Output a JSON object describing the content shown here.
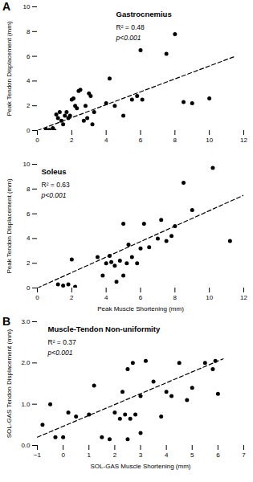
{
  "chart_data": [
    {
      "type": "scatter",
      "title": "Gastrocnemius",
      "panel_label": "A",
      "annotations": [
        "R² = 0.48",
        "p<0.001"
      ],
      "ylabel": "Peak Tendon Displacement (mm)",
      "xlim": [
        0,
        12
      ],
      "ylim": [
        0,
        10
      ],
      "xticks": [
        0,
        2,
        4,
        6,
        8,
        10,
        12
      ],
      "yticks": [
        0,
        2,
        4,
        6,
        8,
        10
      ],
      "grid": false,
      "series": [
        {
          "type": "scatter",
          "color": "black",
          "marker": "o",
          "x": [
            0.5,
            0.7,
            0.9,
            1.0,
            1.1,
            1.2,
            1.3,
            1.4,
            1.5,
            1.6,
            1.7,
            1.8,
            1.9,
            2.0,
            2.1,
            2.2,
            2.3,
            2.4,
            2.5,
            2.7,
            2.8,
            2.9,
            3.0,
            3.1,
            3.2,
            3.3,
            4.0,
            4.2,
            4.5,
            5.0,
            5.5,
            5.8,
            6.0,
            6.1,
            7.5,
            8.0,
            8.5,
            9.0,
            10.0
          ],
          "values": [
            0.1,
            0.05,
            0.2,
            0.0,
            1.3,
            1.0,
            1.5,
            0.8,
            0.5,
            1.2,
            1.5,
            1.0,
            1.2,
            2.5,
            2.6,
            2.0,
            1.8,
            3.2,
            3.3,
            0.8,
            2.0,
            1.0,
            3.0,
            2.8,
            0.5,
            1.5,
            2.2,
            4.2,
            2.0,
            1.2,
            2.5,
            2.8,
            6.5,
            2.5,
            6.2,
            7.8,
            2.3,
            2.2,
            2.6
          ]
        },
        {
          "type": "line",
          "color": "black",
          "line_style": "dashed",
          "x": [
            0,
            11.5
          ],
          "values": [
            0.0,
            6.0
          ]
        }
      ]
    },
    {
      "type": "scatter",
      "title": "Soleus",
      "annotations": [
        "R² = 0.63",
        "p<0.001"
      ],
      "xlabel": "Peak Muscle Shortening (mm)",
      "ylabel": "Peak Tendon Displacement (mm)",
      "xlim": [
        0,
        12
      ],
      "ylim": [
        0,
        10
      ],
      "xticks": [
        0,
        2,
        4,
        6,
        8,
        10,
        12
      ],
      "yticks": [
        0,
        2,
        4,
        6,
        8,
        10
      ],
      "grid": false,
      "series": [
        {
          "type": "scatter",
          "color": "black",
          "marker": "o",
          "x": [
            1.2,
            1.5,
            1.8,
            2.0,
            2.2,
            3.5,
            3.8,
            4.0,
            4.2,
            4.3,
            4.5,
            4.6,
            4.8,
            5.0,
            5.0,
            5.2,
            5.3,
            5.5,
            5.8,
            6.0,
            6.2,
            6.5,
            7.0,
            7.2,
            7.5,
            7.8,
            8.0,
            8.5,
            9.0,
            10.2,
            11.2
          ],
          "values": [
            0.3,
            0.2,
            0.3,
            2.3,
            0.1,
            2.5,
            1.0,
            2.0,
            2.6,
            2.1,
            1.8,
            0.5,
            2.2,
            5.2,
            1.0,
            2.0,
            3.5,
            2.5,
            2.0,
            3.2,
            5.2,
            3.3,
            4.0,
            5.5,
            3.8,
            4.2,
            5.0,
            8.5,
            6.3,
            9.7,
            3.8
          ]
        },
        {
          "type": "line",
          "color": "black",
          "line_style": "dashed",
          "x": [
            0,
            12
          ],
          "values": [
            0.0,
            7.5
          ]
        }
      ]
    },
    {
      "type": "scatter",
      "title": "Muscle-Tendon Non-uniformity",
      "panel_label": "B",
      "annotations": [
        "R² = 0.37",
        "p<0.001"
      ],
      "xlabel": "SOL-GAS Muscle Shortening (mm)",
      "ylabel": "SOL-GAS Tendon Displacement (mm)",
      "xlim": [
        -1,
        7
      ],
      "ylim": [
        0,
        3
      ],
      "xticks": [
        -1,
        0,
        1,
        2,
        3,
        4,
        5,
        6,
        7
      ],
      "yticks": [
        0,
        1,
        2,
        3
      ],
      "grid": false,
      "series": [
        {
          "type": "scatter",
          "color": "black",
          "marker": "o",
          "x": [
            -0.8,
            -0.5,
            -0.3,
            0.0,
            0.2,
            0.5,
            1.0,
            1.2,
            1.5,
            1.8,
            2.0,
            2.2,
            2.3,
            2.4,
            2.5,
            2.5,
            2.6,
            2.7,
            2.8,
            3.0,
            3.0,
            3.2,
            3.5,
            3.8,
            4.0,
            4.2,
            4.5,
            4.8,
            5.0,
            5.5,
            5.8,
            5.9,
            6.0
          ],
          "values": [
            0.5,
            1.0,
            0.2,
            0.2,
            0.8,
            0.7,
            0.75,
            1.45,
            0.2,
            0.15,
            0.8,
            0.65,
            1.3,
            0.75,
            1.85,
            0.15,
            0.65,
            2.0,
            0.75,
            1.2,
            0.3,
            2.05,
            1.55,
            0.7,
            1.3,
            1.2,
            2.0,
            1.1,
            1.4,
            2.0,
            1.85,
            2.05,
            1.25
          ]
        },
        {
          "type": "line",
          "color": "black",
          "line_style": "dashed",
          "x": [
            -1,
            6.2
          ],
          "values": [
            0.2,
            2.1
          ]
        }
      ]
    }
  ]
}
